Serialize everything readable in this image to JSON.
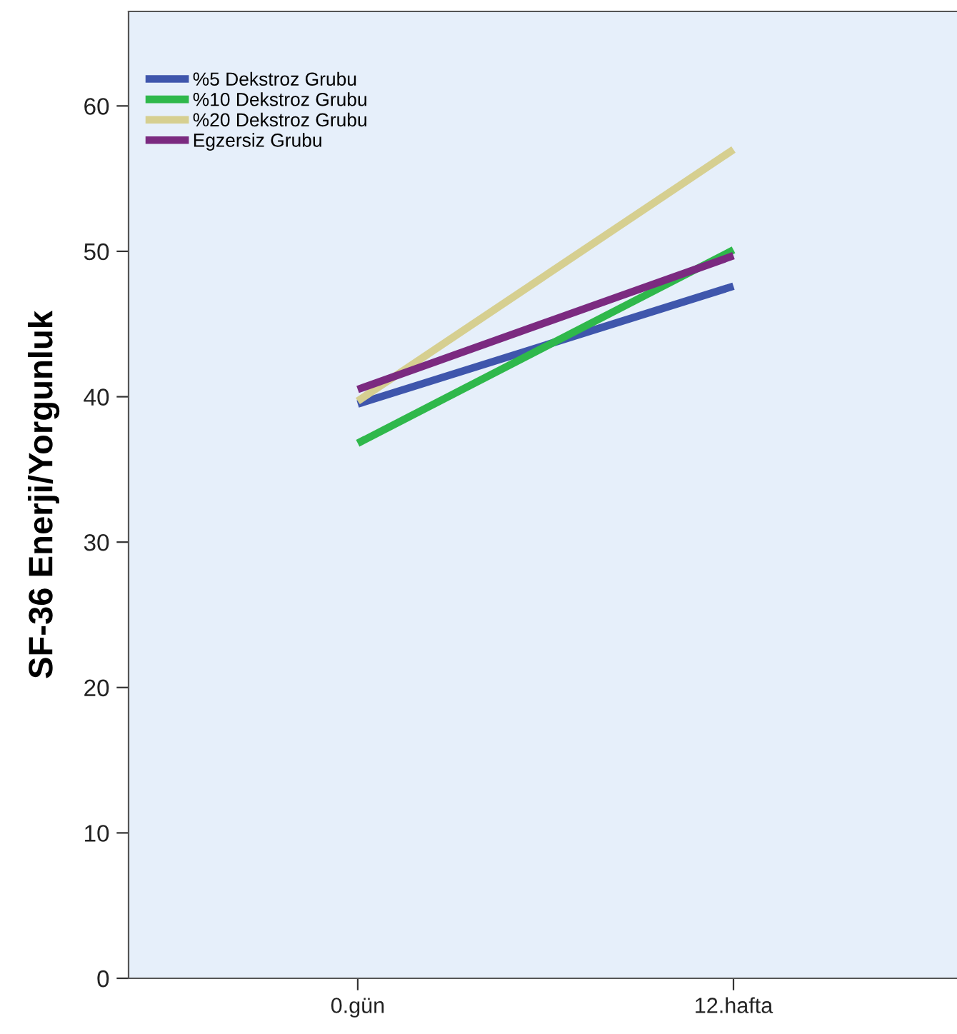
{
  "chart_data": {
    "type": "line",
    "ylabel": "SF-36 Enerji/Yorgunluk",
    "categories": [
      "0.gün",
      "12.hafta"
    ],
    "series": [
      {
        "name": "%5 Dekstroz Grubu",
        "color": "#3f56ac",
        "values": [
          39.5,
          47.6
        ]
      },
      {
        "name": "%10 Dekstroz Grubu",
        "color": "#2fb84b",
        "values": [
          36.8,
          50.1
        ]
      },
      {
        "name": "%20 Dekstroz Grubu",
        "color": "#d6cf90",
        "values": [
          39.7,
          57.0
        ]
      },
      {
        "name": "Egzersiz Grubu",
        "color": "#7b2a80",
        "values": [
          40.5,
          49.7
        ]
      }
    ],
    "ylim": [
      0,
      66.5
    ],
    "yticks": [
      0,
      10,
      20,
      30,
      40,
      50,
      60
    ],
    "grid": false,
    "legend": "top left",
    "marker": "none",
    "line_style": "solid"
  }
}
